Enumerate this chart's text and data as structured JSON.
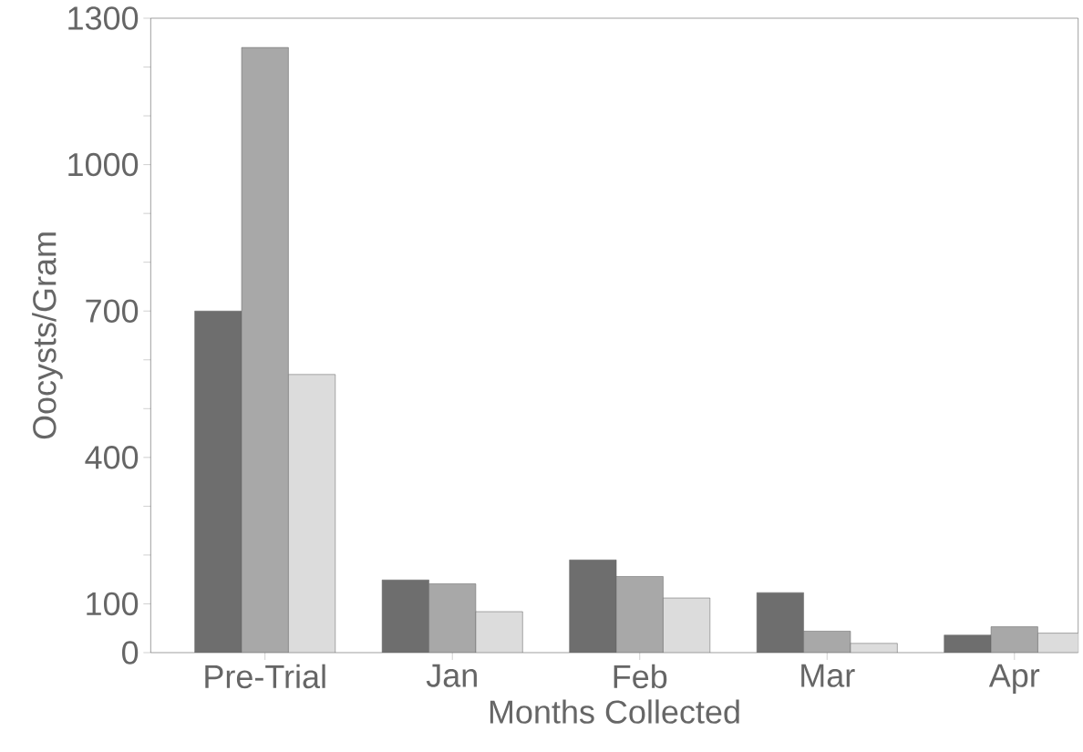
{
  "chart_data": {
    "type": "bar",
    "xlabel": "Months Collected",
    "ylabel": "Oocysts/Gram",
    "categories": [
      "Pre-Trial",
      "Jan",
      "Feb",
      "Mar",
      "Apr"
    ],
    "series": [
      {
        "color": "#6e6e6e",
        "values": [
          700,
          149,
          190,
          123,
          36
        ]
      },
      {
        "color": "#a8a8a8",
        "values": [
          1240,
          141,
          156,
          44,
          53
        ]
      },
      {
        "color": "#dcdcdc",
        "values": [
          570,
          84,
          112,
          19,
          40
        ]
      }
    ],
    "ylim": [
      0,
      1300
    ],
    "yticks": [
      0,
      100,
      {
        "value": 200,
        "label": null
      },
      {
        "value": 300,
        "label": null
      },
      400,
      {
        "value": 500,
        "label": null
      },
      {
        "value": 600,
        "label": null
      },
      700,
      {
        "value": 800,
        "label": null
      },
      {
        "value": 900,
        "label": null
      },
      1000,
      {
        "value": 1100,
        "label": null
      },
      {
        "value": 1200,
        "label": null
      },
      1300
    ],
    "grid": false
  }
}
